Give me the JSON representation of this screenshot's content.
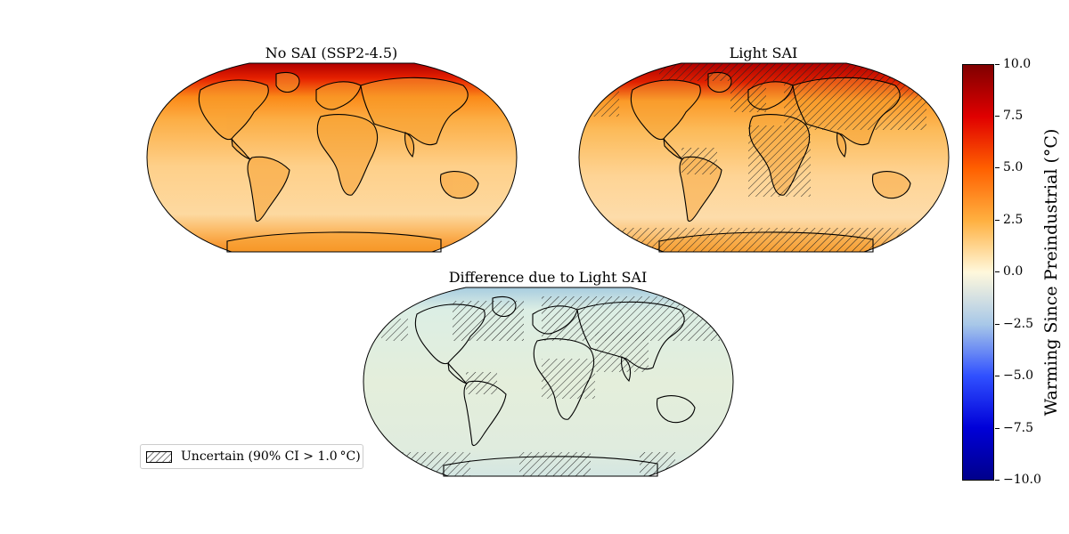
{
  "panels": [
    {
      "title": "No SAI (SSP2-4.5)",
      "hatch": "none",
      "scheme": "warm"
    },
    {
      "title": "Light SAI",
      "hatch": "partial",
      "scheme": "warm"
    },
    {
      "title": "Difference due to Light SAI",
      "hatch": "partial",
      "scheme": "diff"
    }
  ],
  "colorbar": {
    "label": "Warming Since Preindustrial (°C)",
    "min": -10.0,
    "max": 10.0,
    "ticks": [
      "10.0",
      "7.5",
      "5.0",
      "2.5",
      "0.0",
      "−2.5",
      "−5.0",
      "−7.5",
      "−10.0"
    ],
    "colors": [
      "#800000",
      "#e00000",
      "#ff6000",
      "#ffb040",
      "#fff8dc",
      "#a8c8e8",
      "#3050ff",
      "#0000d8",
      "#00008b"
    ]
  },
  "legend": {
    "label": "Uncertain (90% CI > 1.0 °C)"
  }
}
